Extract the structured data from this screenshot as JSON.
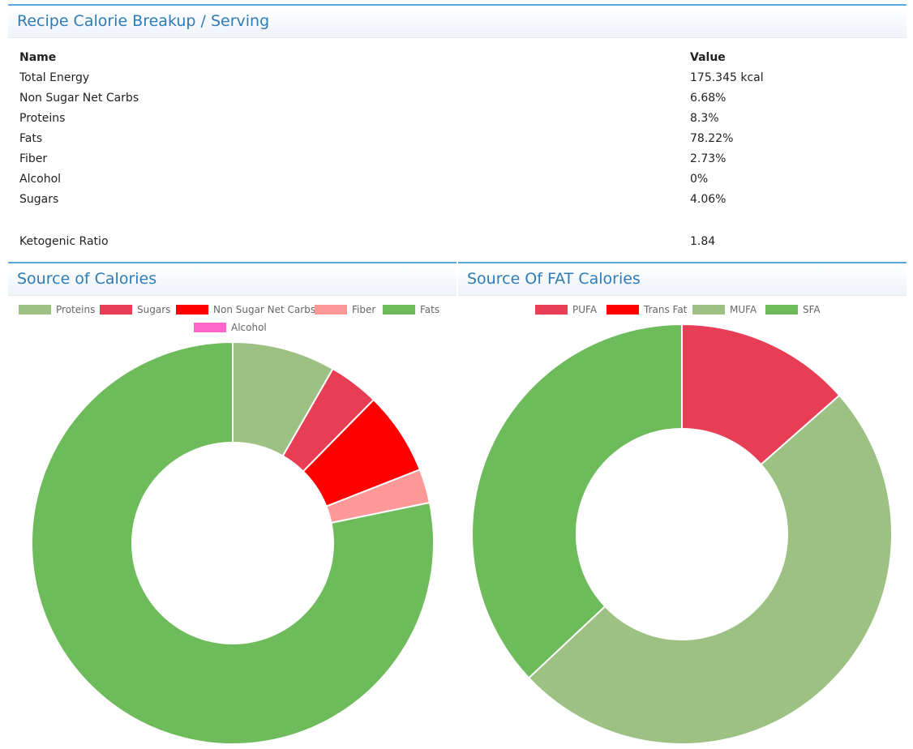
{
  "header": {
    "title": "Recipe Calorie Breakup / Serving"
  },
  "table": {
    "col_name": "Name",
    "col_value": "Value",
    "rows": [
      {
        "name": "Total Energy",
        "value": "175.345 kcal"
      },
      {
        "name": "Non Sugar Net Carbs",
        "value": "6.68%"
      },
      {
        "name": "Proteins",
        "value": "8.3%"
      },
      {
        "name": "Fats",
        "value": "78.22%"
      },
      {
        "name": "Fiber",
        "value": "2.73%"
      },
      {
        "name": "Alcohol",
        "value": "0%"
      },
      {
        "name": "Sugars",
        "value": "4.06%"
      }
    ],
    "ketogenic": {
      "name": "Ketogenic Ratio",
      "value": "1.84"
    }
  },
  "chart_data": [
    {
      "type": "pie",
      "title": "Source of Calories",
      "categories": [
        "Proteins",
        "Sugars",
        "Non Sugar Net Carbs",
        "Fiber",
        "Fats",
        "Alcohol"
      ],
      "values": [
        8.3,
        4.06,
        6.68,
        2.73,
        78.22,
        0
      ],
      "colors": [
        "#9dc183",
        "#e83e55",
        "#ff0000",
        "#ff9999",
        "#6dbb5a",
        "#ff66cc"
      ],
      "legend": "top"
    },
    {
      "type": "pie",
      "title": "Source Of FAT Calories",
      "categories": [
        "PUFA",
        "Trans Fat",
        "MUFA",
        "SFA"
      ],
      "values": [
        13.5,
        0,
        49.5,
        37
      ],
      "colors": [
        "#e83e55",
        "#ff0000",
        "#9dc183",
        "#6dbb5a"
      ],
      "legend": "top"
    }
  ]
}
